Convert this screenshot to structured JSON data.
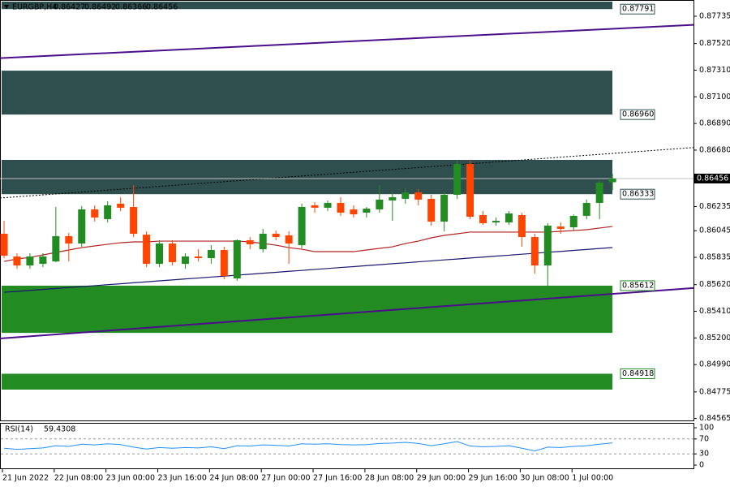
{
  "chart_data": {
    "type": "candlestick",
    "symbol": "EURGBP,H4",
    "categories": [
      "21 Jun 2022",
      null,
      null,
      null,
      "22 Jun 08:00",
      null,
      null,
      null,
      "23 Jun 00:00",
      null,
      null,
      null,
      "23 Jun 16:00",
      null,
      null,
      null,
      "24 Jun 08:00",
      null,
      null,
      null,
      "27 Jun 00:00",
      null,
      null,
      null,
      "27 Jun 16:00",
      null,
      null,
      null,
      "28 Jun 08:00",
      null,
      null,
      null,
      "29 Jun 00:00",
      null,
      null,
      null,
      "29 Jun 16:00",
      null,
      null,
      null,
      "30 Jun 08:00",
      null,
      null,
      null,
      "1 Jul 00:00",
      null,
      null,
      null
    ],
    "open": [
      0.86021,
      0.85842,
      0.85771,
      0.85784,
      0.85803,
      0.86002,
      0.85944,
      0.86213,
      0.86136,
      0.86258,
      0.86232,
      0.86014,
      0.85784,
      0.85944,
      0.85784,
      0.85842,
      0.85829,
      0.85893,
      0.85669,
      0.8597,
      0.85899,
      0.86021,
      0.86008,
      0.85931,
      0.86245,
      0.86226,
      0.86264,
      0.86213,
      0.86187,
      0.86213,
      0.86283,
      0.86296,
      0.86347,
      0.86296,
      0.86117,
      0.86328,
      0.86571,
      0.86168,
      0.8611,
      0.8611,
      0.86168,
      0.85995,
      0.85771,
      0.86078,
      0.86072,
      0.86162,
      0.86264,
      0.86427
    ],
    "high": [
      0.86123,
      0.85868,
      0.85868,
      0.85868,
      0.86232,
      0.86028,
      0.86239,
      0.86245,
      0.86277,
      0.86309,
      0.86405,
      0.8604,
      0.8597,
      0.8597,
      0.85868,
      0.85899,
      0.85931,
      0.85918,
      0.85976,
      0.85995,
      0.86059,
      0.86046,
      0.8604,
      0.86258,
      0.8627,
      0.86283,
      0.86309,
      0.86245,
      0.86232,
      0.86405,
      0.86347,
      0.86379,
      0.86373,
      0.86328,
      0.86347,
      0.86597,
      0.86597,
      0.862,
      0.86149,
      0.862,
      0.86187,
      0.86021,
      0.86104,
      0.8611,
      0.86174,
      0.8629,
      0.86437,
      0.86492
    ],
    "low": [
      0.85829,
      0.85745,
      0.85745,
      0.85758,
      0.85797,
      0.85803,
      0.85918,
      0.86117,
      0.8611,
      0.862,
      0.85995,
      0.85758,
      0.85758,
      0.85771,
      0.85745,
      0.85803,
      0.85784,
      0.85662,
      0.8565,
      0.85899,
      0.85874,
      0.8597,
      0.85784,
      0.85906,
      0.86187,
      0.862,
      0.86162,
      0.86149,
      0.86149,
      0.86187,
      0.86123,
      0.86258,
      0.86245,
      0.86085,
      0.8604,
      0.86296,
      0.86136,
      0.86091,
      0.86085,
      0.86091,
      0.85918,
      0.85707,
      0.85605,
      0.86021,
      0.86046,
      0.86136,
      0.86136,
      0.86366
    ],
    "close": [
      0.85848,
      0.85771,
      0.85842,
      0.85842,
      0.86002,
      0.85944,
      0.86213,
      0.86149,
      0.86245,
      0.86226,
      0.86021,
      0.85784,
      0.85944,
      0.85797,
      0.85842,
      0.85829,
      0.85893,
      0.85688,
      0.8597,
      0.85938,
      0.86021,
      0.85995,
      0.85944,
      0.86232,
      0.86226,
      0.86264,
      0.86187,
      0.86174,
      0.86219,
      0.8629,
      0.86309,
      0.86347,
      0.8629,
      0.86117,
      0.86328,
      0.86571,
      0.86155,
      0.86104,
      0.86123,
      0.86181,
      0.85995,
      0.85771,
      0.86085,
      0.86059,
      0.86162,
      0.86264,
      0.86424,
      0.86456
    ],
    "up_color": "#228b22",
    "down_color": "#ff4500",
    "lines": [
      {
        "color": "#b22222",
        "values": [
          0.85803,
          0.85822,
          0.85835,
          0.85854,
          0.85874,
          0.85893,
          0.85912,
          0.85925,
          0.85938,
          0.8595,
          0.85957,
          0.85957,
          0.85963,
          0.85963,
          0.85963,
          0.85963,
          0.85963,
          0.85963,
          0.85963,
          0.85957,
          0.85944,
          0.85931,
          0.85912,
          0.85899,
          0.8588,
          0.8588,
          0.8588,
          0.8588,
          0.85893,
          0.85906,
          0.85918,
          0.85944,
          0.85963,
          0.85989,
          0.86008,
          0.86021,
          0.86034,
          0.86034,
          0.86034,
          0.86034,
          0.86034,
          0.86034,
          0.86034,
          0.8604,
          0.86046,
          0.86053,
          0.86066,
          0.86078
        ]
      },
      {
        "color": "#191970",
        "values": [
          0.8556,
          0.85567,
          0.85575,
          0.85582,
          0.8559,
          0.85597,
          0.85605,
          0.85612,
          0.8562,
          0.85627,
          0.85635,
          0.85642,
          0.8565,
          0.85657,
          0.85665,
          0.85672,
          0.8568,
          0.85687,
          0.85695,
          0.85702,
          0.8571,
          0.85717,
          0.85725,
          0.85732,
          0.8574,
          0.85747,
          0.85755,
          0.85762,
          0.8577,
          0.85777,
          0.85785,
          0.85792,
          0.858,
          0.85807,
          0.85815,
          0.85822,
          0.8583,
          0.85837,
          0.85845,
          0.85852,
          0.8586,
          0.85867,
          0.85875,
          0.85882,
          0.8589,
          0.85897,
          0.85905,
          0.85912
        ]
      }
    ],
    "zones": [
      {
        "color": "#2f4f4f",
        "top": 0.8785,
        "bottom": 0.87791
      },
      {
        "color": "#2f4f4f",
        "top": 0.87306,
        "bottom": 0.8696
      },
      {
        "color": "#2f4f4f",
        "top": 0.86603,
        "bottom": 0.86333
      },
      {
        "color": "#228b22",
        "top": 0.85612,
        "bottom": 0.8524
      },
      {
        "color": "#228b22",
        "top": 0.84918,
        "bottom": 0.84793
      }
    ],
    "levels": [
      {
        "value": 0.87791,
        "label": "0.87791",
        "color": "#2f4f4f"
      },
      {
        "value": 0.8696,
        "label": "0.86960",
        "color": "#2f4f4f"
      },
      {
        "value": 0.86333,
        "label": "0.86333",
        "color": "#2f4f4f"
      },
      {
        "value": 0.85612,
        "label": "0.85612",
        "color": "#228b22"
      },
      {
        "value": 0.84918,
        "label": "0.84918",
        "color": "#228b22"
      }
    ],
    "trendlines": [
      {
        "color": "#4b0f8c",
        "dashed": false,
        "start": 0.87406,
        "end": 0.87636
      },
      {
        "color": "#4b0f8c",
        "dashed": false,
        "start": 0.85198,
        "end": 0.85547
      },
      {
        "color": "#000000",
        "dashed": true,
        "start": 0.86305,
        "end": 0.86654
      }
    ],
    "ylim": [
      0.8455,
      0.8785
    ],
    "yticks": [
      0.87735,
      {
        "value": 0.8752,
        "label": "0.87520"
      },
      {
        "value": 0.8731,
        "label": "0.87310"
      },
      {
        "value": 0.871,
        "label": "0.87100"
      },
      {
        "value": 0.8689,
        "label": "0.86890"
      },
      {
        "value": 0.8668,
        "label": "0.86680"
      },
      0.86235,
      0.86045,
      0.85835,
      {
        "value": 0.8562,
        "label": "0.85620"
      },
      {
        "value": 0.8541,
        "label": "0.85410"
      },
      {
        "value": 0.852,
        "label": "0.85200"
      },
      {
        "value": 0.8499,
        "label": "0.84990"
      },
      0.84775,
      0.84565
    ],
    "rsi": {
      "label": "RSI(14)",
      "color": "#1e90ff",
      "values": [
        45,
        42,
        44,
        46,
        52,
        50,
        56,
        54,
        57,
        55,
        48,
        43,
        47,
        45,
        47,
        46,
        49,
        44,
        52,
        51,
        54,
        53,
        51,
        57,
        56,
        57,
        55,
        54,
        55,
        58,
        59,
        61,
        58,
        52,
        57,
        63,
        51,
        49,
        50,
        52,
        45,
        38,
        48,
        47,
        50,
        52,
        56,
        59.4308
      ],
      "ylim": [
        0,
        100
      ],
      "yticks": [
        0,
        30,
        70,
        100
      ],
      "levels": [
        30,
        70
      ]
    }
  }
}
